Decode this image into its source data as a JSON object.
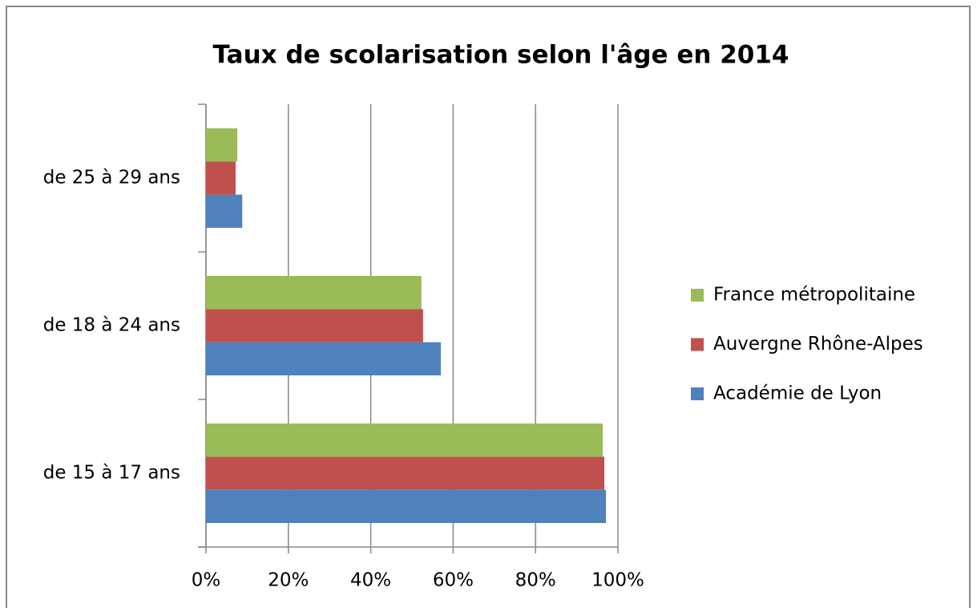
{
  "chart_data": {
    "type": "bar",
    "orientation": "horizontal",
    "title": "Taux de scolarisation selon l'âge en 2014",
    "categories": [
      "de 15 à 17 ans",
      "de 18 à 24 ans",
      "de 25 à 29 ans"
    ],
    "series": [
      {
        "name": "Académie de Lyon",
        "color": "#4f81bd",
        "values": [
          97.1,
          57.0,
          8.8
        ]
      },
      {
        "name": "Auvergne Rhône-Alpes",
        "color": "#c0504d",
        "values": [
          96.7,
          52.7,
          7.2
        ]
      },
      {
        "name": "France métropolitaine",
        "color": "#9bbb59",
        "values": [
          96.3,
          52.3,
          7.6
        ]
      }
    ],
    "xlim": [
      0,
      100
    ],
    "xticks": [
      {
        "value": 0,
        "label": "0%"
      },
      {
        "value": 20,
        "label": "20%"
      },
      {
        "value": 40,
        "label": "40%"
      },
      {
        "value": 60,
        "label": "60%"
      },
      {
        "value": 80,
        "label": "80%"
      },
      {
        "value": 100,
        "label": "100%"
      }
    ],
    "grid": true,
    "legend": "right"
  }
}
